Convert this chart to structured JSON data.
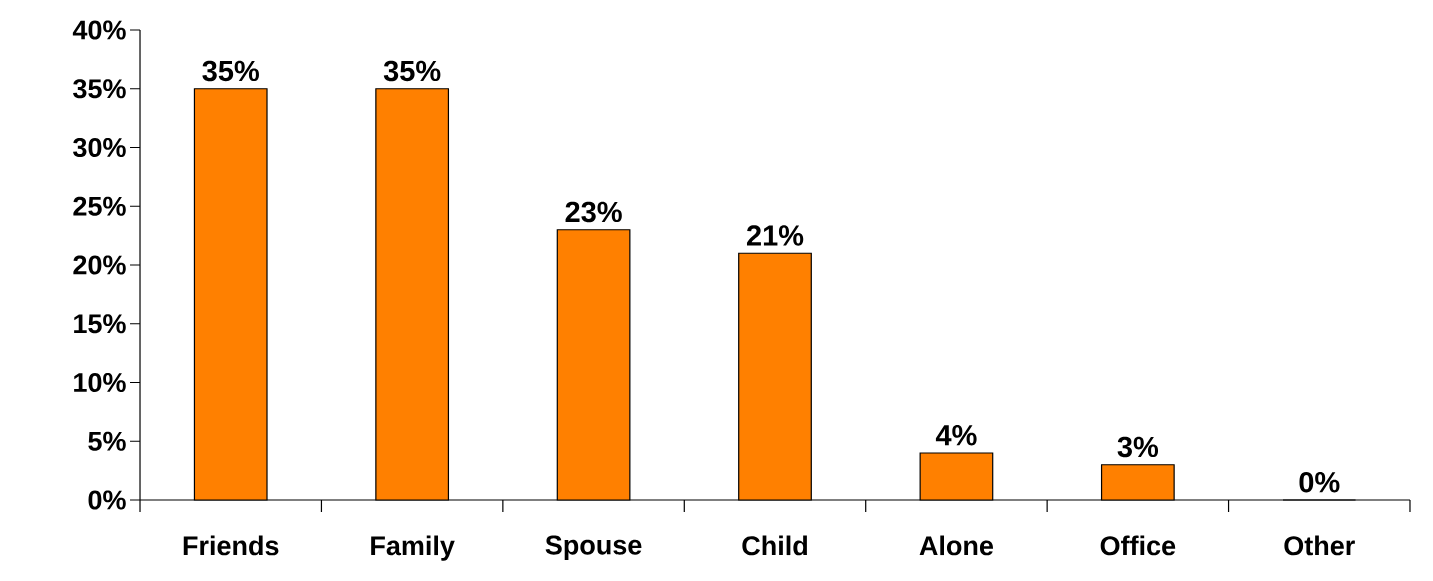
{
  "chart_data": {
    "type": "bar",
    "categories": [
      "Friends",
      "Family",
      "Spouse",
      "Child",
      "Alone",
      "Office",
      "Other"
    ],
    "values": [
      35,
      35,
      23,
      21,
      4,
      3,
      0
    ],
    "value_labels": [
      "35%",
      "35%",
      "23%",
      "21%",
      "4%",
      "3%",
      "0%"
    ],
    "color": "#ff8000",
    "ylim": [
      0,
      40
    ],
    "yticks": [
      {
        "value": 0,
        "label": "0%"
      },
      {
        "value": 5,
        "label": "5%"
      },
      {
        "value": 10,
        "label": "10%"
      },
      {
        "value": 15,
        "label": "15%"
      },
      {
        "value": 20,
        "label": "20%"
      },
      {
        "value": 25,
        "label": "25%"
      },
      {
        "value": 30,
        "label": "30%"
      },
      {
        "value": 35,
        "label": "35%"
      },
      {
        "value": 40,
        "label": "40%"
      }
    ],
    "grid": false
  }
}
